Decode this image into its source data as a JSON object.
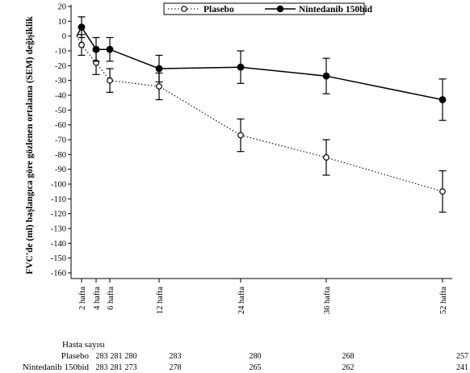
{
  "chart_data": {
    "type": "line",
    "title": "",
    "ylabel": "FVC'de (ml) başlangıca göre gözlenen ortalama (SEM) değişiklik",
    "xlabel": "",
    "ylim": [
      -160,
      20
    ],
    "yticks": [
      20,
      10,
      0,
      -10,
      -20,
      -30,
      -40,
      -50,
      -60,
      -70,
      -80,
      -90,
      -100,
      -110,
      -120,
      -130,
      -140,
      -150,
      -160
    ],
    "xticks": [
      {
        "week": 2,
        "label": "2 hafta"
      },
      {
        "week": 4,
        "label": "4 hafta"
      },
      {
        "week": 6,
        "label": "6 hafta"
      },
      {
        "week": 12,
        "label": "12 hafta"
      },
      {
        "week": 24,
        "label": "24 hafta"
      },
      {
        "week": 36,
        "label": "36 hafta"
      },
      {
        "week": 52,
        "label": "52 hafta"
      }
    ],
    "legend_position": "top-center",
    "series": [
      {
        "name": "Plasebo",
        "color": "#000000",
        "style": "dotted-open-circle",
        "points": [
          {
            "x": 0,
            "y": 0
          },
          {
            "x": 2,
            "y": -6,
            "err": 7
          },
          {
            "x": 4,
            "y": -18,
            "err": 8
          },
          {
            "x": 6,
            "y": -30,
            "err": 8
          },
          {
            "x": 12,
            "y": -34,
            "err": 9
          },
          {
            "x": 24,
            "y": -67,
            "err": 11
          },
          {
            "x": 36,
            "y": -82,
            "err": 12
          },
          {
            "x": 52,
            "y": -105,
            "err": 14
          }
        ]
      },
      {
        "name": "Nintedanib 150bid",
        "color": "#000000",
        "style": "solid-filled-circle",
        "points": [
          {
            "x": 0,
            "y": 0
          },
          {
            "x": 2,
            "y": 6,
            "err": 7
          },
          {
            "x": 4,
            "y": -9,
            "err": 8
          },
          {
            "x": 6,
            "y": -9,
            "err": 8
          },
          {
            "x": 12,
            "y": -22,
            "err": 9
          },
          {
            "x": 24,
            "y": -21,
            "err": 11
          },
          {
            "x": 36,
            "y": -27,
            "err": 12
          },
          {
            "x": 52,
            "y": -43,
            "err": 14
          }
        ]
      }
    ]
  },
  "risk_table": {
    "title": "Hasta sayısı",
    "rows": [
      {
        "label": "Plasebo",
        "values": [
          "283",
          "281",
          "280",
          "283",
          "280",
          "268",
          "257"
        ]
      },
      {
        "label": "Nintedanib 150bid",
        "values": [
          "283",
          "281",
          "273",
          "278",
          "265",
          "262",
          "241"
        ]
      }
    ]
  }
}
